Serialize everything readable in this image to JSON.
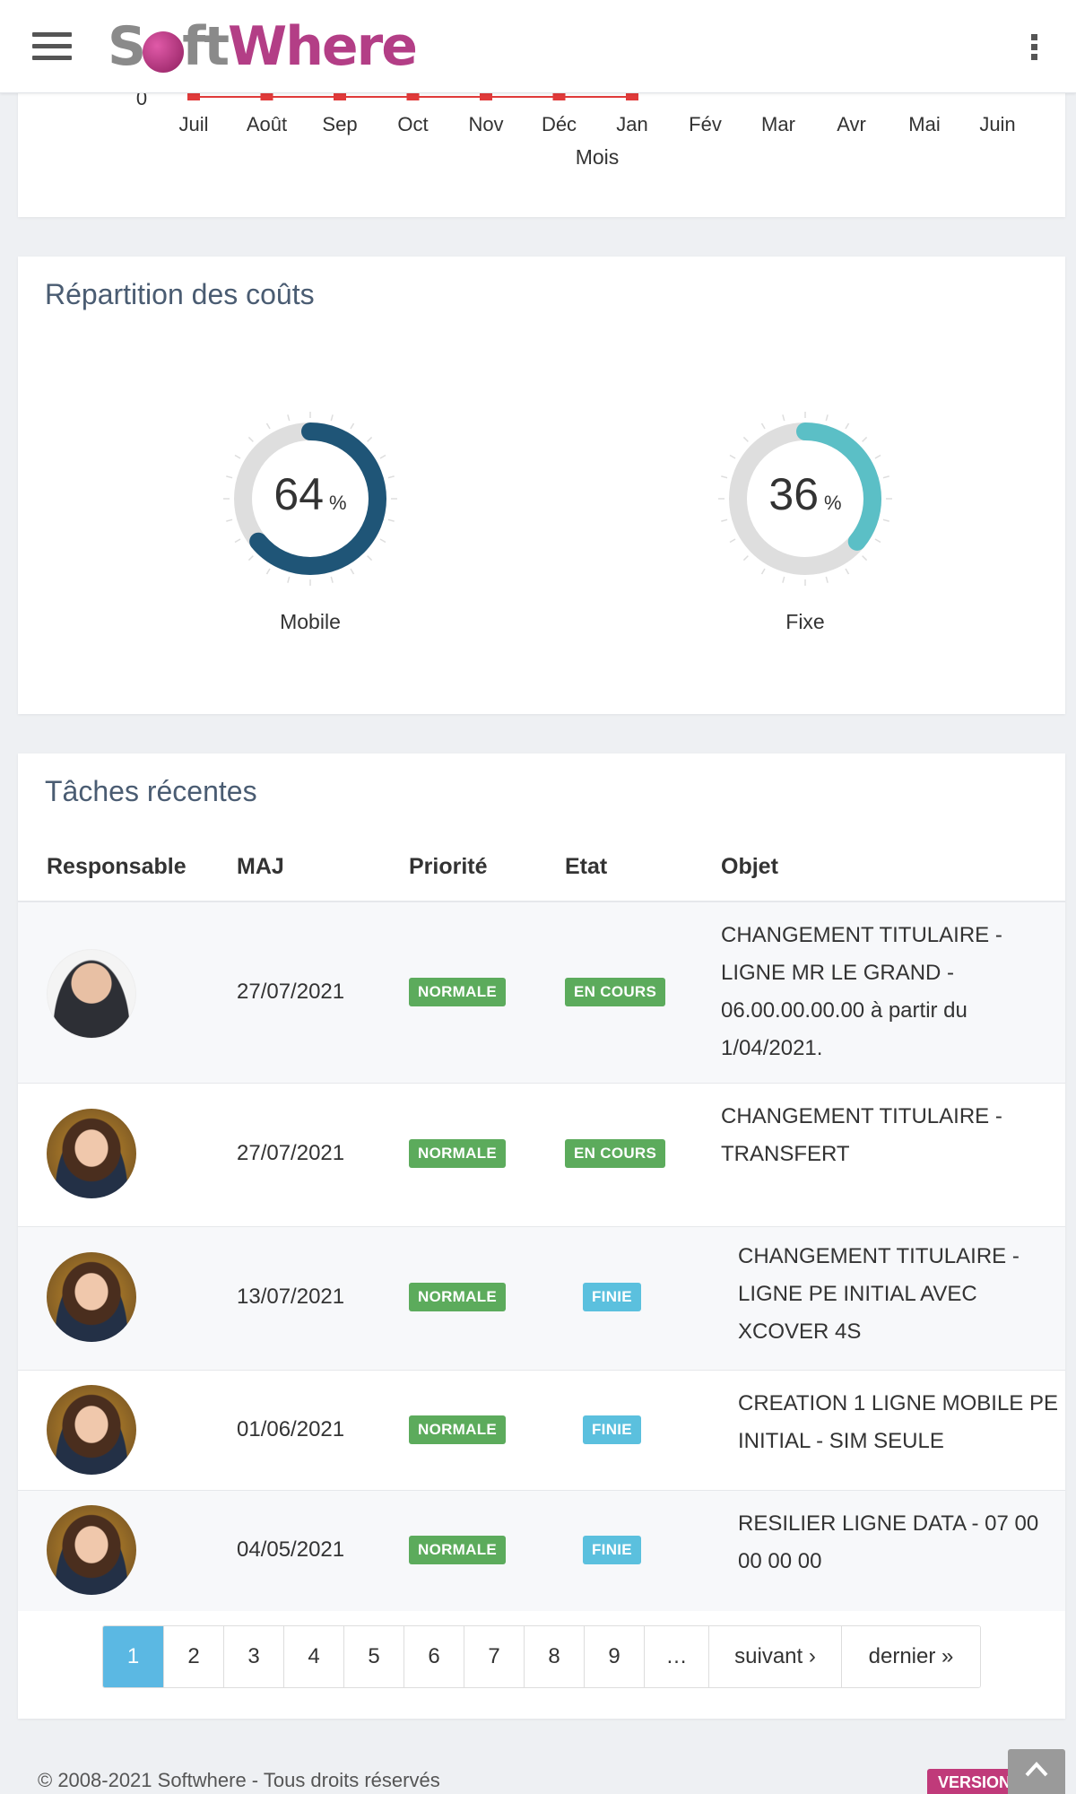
{
  "header": {
    "logo_text_soft": "S",
    "logo_text_ft": "ft",
    "logo_text_where": "Where",
    "menu_icon": "hamburger-icon",
    "more_icon": "kebab-icon"
  },
  "line_chart": {
    "y_zero_label": "0",
    "xlabel": "Mois",
    "months": [
      "Juil",
      "Août",
      "Sep",
      "Oct",
      "Nov",
      "Déc",
      "Jan",
      "Fév",
      "Mar",
      "Avr",
      "Mai",
      "Juin"
    ],
    "values": [
      0,
      0,
      0,
      0,
      0,
      0,
      0,
      null,
      null,
      null,
      null,
      null
    ],
    "series_color": "#e03a3a"
  },
  "cost_distribution": {
    "title": "Répartition des coûts",
    "gauges": [
      {
        "value": "64",
        "unit": "%",
        "label": "Mobile",
        "fraction": 0.64,
        "color": "#1f5577"
      },
      {
        "value": "36",
        "unit": "%",
        "label": "Fixe",
        "fraction": 0.36,
        "color": "#5bbfc6"
      }
    ]
  },
  "tasks": {
    "title": "Tâches récentes",
    "columns": [
      "Responsable",
      "MAJ",
      "Priorité",
      "Etat",
      "Objet"
    ],
    "rows": [
      {
        "avatar": "man",
        "date": "27/07/2021",
        "priority": "NORMALE",
        "status": "EN COURS",
        "object": "CHANGEMENT TITULAIRE - LIGNE MR LE GRAND - 06.00.00.00.00 à partir du 1/04/2021."
      },
      {
        "avatar": "woman",
        "date": "27/07/2021",
        "priority": "NORMALE",
        "status": "EN COURS",
        "object": "CHANGEMENT TITULAIRE - TRANSFERT"
      },
      {
        "avatar": "woman",
        "date": "13/07/2021",
        "priority": "NORMALE",
        "status": "FINIE",
        "object": "CHANGEMENT TITULAIRE - LIGNE PE INITIAL AVEC XCOVER 4S"
      },
      {
        "avatar": "woman",
        "date": "01/06/2021",
        "priority": "NORMALE",
        "status": "FINIE",
        "object": "CREATION 1 LIGNE MOBILE PE INITIAL - SIM SEULE"
      },
      {
        "avatar": "woman",
        "date": "04/05/2021",
        "priority": "NORMALE",
        "status": "FINIE",
        "object": "RESILIER LIGNE DATA - 07 00 00 00 00"
      }
    ],
    "colors": {
      "normale": "#5cab5c",
      "en_cours": "#5cab5c",
      "finie": "#5bc0de"
    }
  },
  "pagination": {
    "pages": [
      "1",
      "2",
      "3",
      "4",
      "5",
      "6",
      "7",
      "8",
      "9",
      "…"
    ],
    "active": "1",
    "next": "suivant ›",
    "last": "dernier »"
  },
  "footer": {
    "copyright": "© 2008-2021 Softwhere - Tous droits réservés",
    "version": "VERSION: 1.0"
  }
}
